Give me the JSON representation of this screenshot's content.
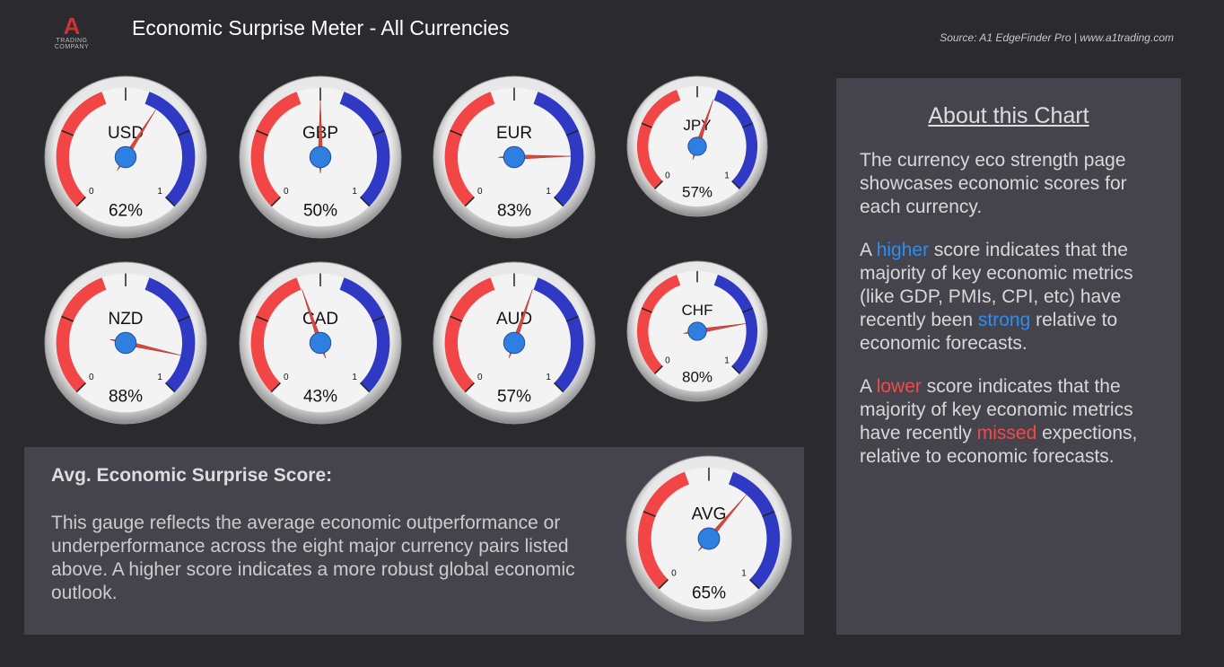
{
  "header": {
    "logo_letter": "A",
    "logo_text": "TRADING COMPANY",
    "title": "Economic Surprise Meter - All Currencies",
    "source": "Source: A1 EdgeFinder Pro | www.a1trading.com"
  },
  "chart_data": [
    {
      "type": "gauge",
      "label": "USD",
      "value": 0.62,
      "value_label": "62%",
      "lim": [
        0,
        1
      ],
      "ticks": [
        0,
        1
      ]
    },
    {
      "type": "gauge",
      "label": "GBP",
      "value": 0.5,
      "value_label": "50%",
      "lim": [
        0,
        1
      ],
      "ticks": [
        0,
        1
      ]
    },
    {
      "type": "gauge",
      "label": "EUR",
      "value": 0.83,
      "value_label": "83%",
      "lim": [
        0,
        1
      ],
      "ticks": [
        0,
        1
      ]
    },
    {
      "type": "gauge",
      "label": "JPY",
      "value": 0.57,
      "value_label": "57%",
      "lim": [
        0,
        1
      ],
      "ticks": [
        0,
        1
      ]
    },
    {
      "type": "gauge",
      "label": "NZD",
      "value": 0.88,
      "value_label": "88%",
      "lim": [
        0,
        1
      ],
      "ticks": [
        0,
        1
      ]
    },
    {
      "type": "gauge",
      "label": "CAD",
      "value": 0.43,
      "value_label": "43%",
      "lim": [
        0,
        1
      ],
      "ticks": [
        0,
        1
      ]
    },
    {
      "type": "gauge",
      "label": "AUD",
      "value": 0.57,
      "value_label": "57%",
      "lim": [
        0,
        1
      ],
      "ticks": [
        0,
        1
      ]
    },
    {
      "type": "gauge",
      "label": "CHF",
      "value": 0.8,
      "value_label": "80%",
      "lim": [
        0,
        1
      ],
      "ticks": [
        0,
        1
      ]
    },
    {
      "type": "gauge",
      "label": "AVG",
      "value": 0.65,
      "value_label": "65%",
      "lim": [
        0,
        1
      ],
      "ticks": [
        0,
        1
      ]
    }
  ],
  "avg_panel": {
    "title": "Avg. Economic Surprise Score:",
    "text": "This gauge reflects the average economic outperformance or underperformance across the eight major currency pairs listed above. A higher score indicates a more robust global economic outlook."
  },
  "about": {
    "title": "About this Chart",
    "paragraphs": [
      [
        "The currency eco strength page showcases economic scores for each currency."
      ],
      [
        "A ",
        "higher",
        " score indicates that the majority of key economic metrics (like GDP, PMIs, CPI, etc) have recently been ",
        "strong",
        " relative to economic forecasts."
      ],
      [
        "A ",
        "lower",
        " score indicates that the majority of key economic metrics have recently ",
        "missed",
        " expections, relative to economic forecasts."
      ]
    ]
  }
}
